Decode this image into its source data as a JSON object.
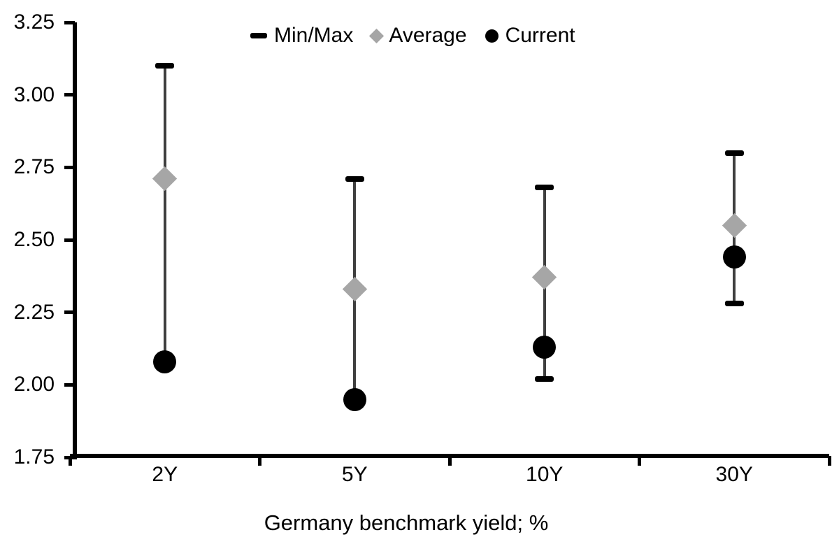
{
  "legend": {
    "items": [
      {
        "key": "minmax",
        "label": "Min/Max",
        "marker": "dash",
        "color": "#000000"
      },
      {
        "key": "average",
        "label": "Average",
        "marker": "diamond",
        "color": "#a6a6a6"
      },
      {
        "key": "current",
        "label": "Current",
        "marker": "circle",
        "color": "#000000"
      }
    ]
  },
  "chart_data": {
    "type": "range-dot",
    "title": "",
    "xlabel": "Germany benchmark yield; %",
    "ylabel": "",
    "categories": [
      "2Y",
      "5Y",
      "10Y",
      "30Y"
    ],
    "series": [
      {
        "name": "Min",
        "values": [
          2.08,
          1.95,
          2.02,
          2.28
        ]
      },
      {
        "name": "Max",
        "values": [
          3.1,
          2.71,
          2.68,
          2.8
        ]
      },
      {
        "name": "Average",
        "values": [
          2.71,
          2.33,
          2.37,
          2.55
        ]
      },
      {
        "name": "Current",
        "values": [
          2.08,
          1.95,
          2.13,
          2.44
        ]
      }
    ],
    "ylim": [
      1.75,
      3.25
    ],
    "yticks": [
      3.25,
      3.0,
      2.75,
      2.5,
      2.25,
      2.0,
      1.75
    ],
    "grid": false,
    "legend_position": "top",
    "colors": {
      "whisker": "#3f3f3f",
      "cap": "#000000",
      "average_marker": "#a6a6a6",
      "current_marker": "#000000",
      "axis": "#000000",
      "background": "#ffffff"
    }
  }
}
